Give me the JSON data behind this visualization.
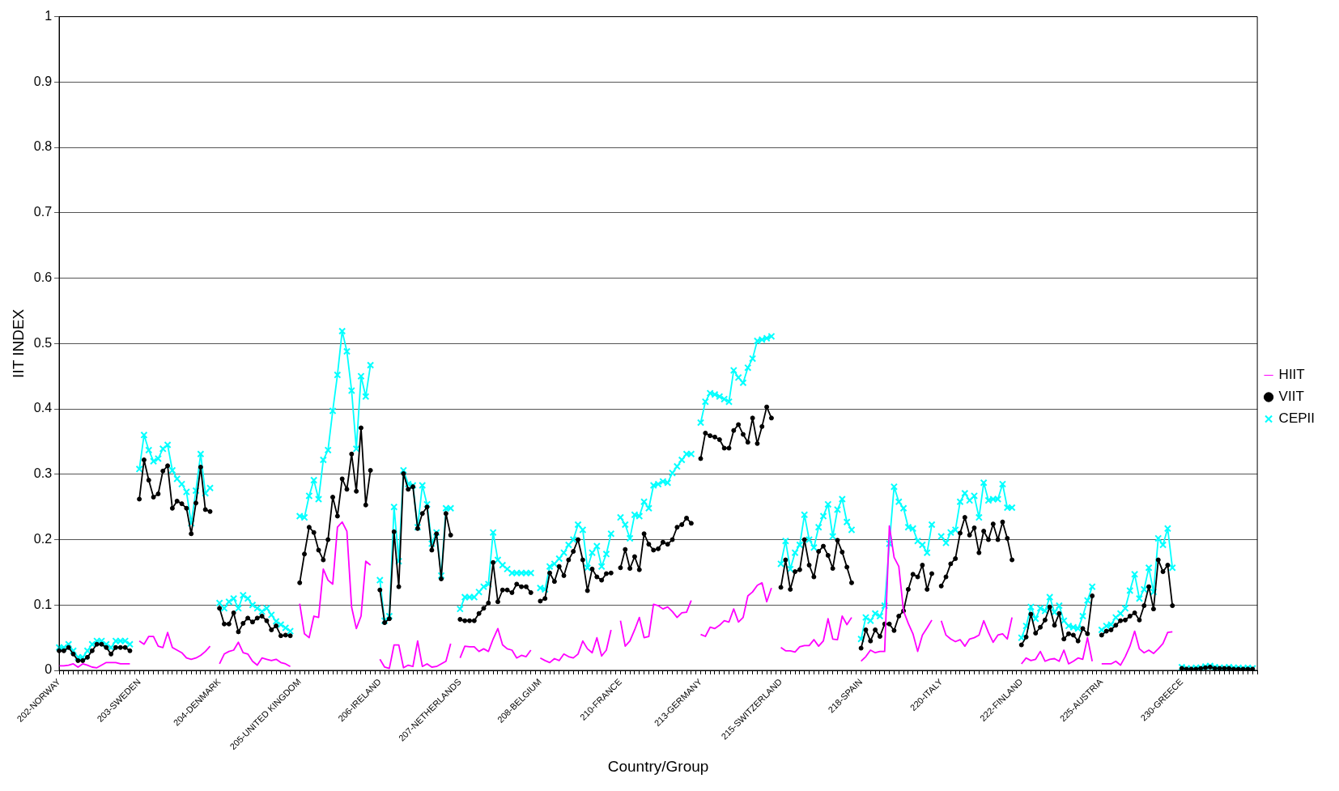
{
  "chart_data": {
    "type": "line",
    "xlabel": "Country/Group",
    "ylabel": "IIT INDEX",
    "ylim": [
      0,
      1
    ],
    "yticks": [
      0,
      0.1,
      0.2,
      0.3,
      0.4,
      0.5,
      0.6,
      0.7,
      0.8,
      0.9,
      1
    ],
    "grid": "y",
    "legend": "right",
    "categories": [
      "202-NORWAY",
      null,
      null,
      null,
      null,
      null,
      null,
      null,
      null,
      null,
      null,
      null,
      null,
      null,
      null,
      null,
      null,
      "203-SWEDEN",
      null,
      null,
      null,
      null,
      null,
      null,
      null,
      null,
      null,
      null,
      null,
      null,
      null,
      null,
      null,
      null,
      "204-DENMARK",
      null,
      null,
      null,
      null,
      null,
      null,
      null,
      null,
      null,
      null,
      null,
      null,
      null,
      null,
      null,
      null,
      "205-UNITED KINGDOM",
      null,
      null,
      null,
      null,
      null,
      null,
      null,
      null,
      null,
      null,
      null,
      null,
      null,
      null,
      null,
      null,
      "206-IRELAND",
      null,
      null,
      null,
      null,
      null,
      null,
      null,
      null,
      null,
      null,
      null,
      null,
      null,
      null,
      null,
      null,
      "207-NETHERLANDS",
      null,
      null,
      null,
      null,
      null,
      null,
      null,
      null,
      null,
      null,
      null,
      null,
      null,
      null,
      null,
      null,
      "208-BELGIUM",
      null,
      null,
      null,
      null,
      null,
      null,
      null,
      null,
      null,
      null,
      null,
      null,
      null,
      null,
      null,
      null,
      "210-FRANCE",
      null,
      null,
      null,
      null,
      null,
      null,
      null,
      null,
      null,
      null,
      null,
      null,
      null,
      null,
      null,
      null,
      "213-GERMANY",
      null,
      null,
      null,
      null,
      null,
      null,
      null,
      null,
      null,
      null,
      null,
      null,
      null,
      null,
      null,
      null,
      "215-SWITZERLAND",
      null,
      null,
      null,
      null,
      null,
      null,
      null,
      null,
      null,
      null,
      null,
      null,
      null,
      null,
      null,
      null,
      "218-SPAIN",
      null,
      null,
      null,
      null,
      null,
      null,
      null,
      null,
      null,
      null,
      null,
      null,
      null,
      null,
      null,
      null,
      "220-ITALY",
      null,
      null,
      null,
      null,
      null,
      null,
      null,
      null,
      null,
      null,
      null,
      null,
      null,
      null,
      null,
      null,
      "222-FINLAND",
      null,
      null,
      null,
      null,
      null,
      null,
      null,
      null,
      null,
      null,
      null,
      null,
      null,
      null,
      null,
      null,
      "225-AUSTRIA",
      null,
      null,
      null,
      null,
      null,
      null,
      null,
      null,
      null,
      null,
      null,
      null,
      null,
      null,
      null,
      null,
      "230-GREECE",
      null,
      null,
      null,
      null,
      null,
      null,
      null,
      null,
      null,
      null,
      null,
      null,
      null,
      null,
      null,
      null
    ],
    "series": [
      {
        "name": "HIIT",
        "color": "#ff00ff",
        "marker": "none",
        "values": [
          0.007,
          0.007,
          0.008,
          0.01,
          0.005,
          0.01,
          0.008,
          0.005,
          0.004,
          0.008,
          0.012,
          0.012,
          0.012,
          0.01,
          0.01,
          0.01,
          null,
          0.045,
          0.04,
          0.052,
          0.052,
          0.037,
          0.035,
          0.058,
          0.035,
          0.031,
          0.027,
          0.019,
          0.017,
          0.019,
          0.023,
          0.029,
          0.037,
          null,
          0.01,
          0.025,
          0.029,
          0.031,
          0.043,
          0.027,
          0.025,
          0.014,
          0.008,
          0.019,
          0.017,
          0.015,
          0.017,
          0.012,
          0.01,
          0.006,
          null,
          0.102,
          0.056,
          0.05,
          0.083,
          0.081,
          0.155,
          0.138,
          0.132,
          0.219,
          0.227,
          0.213,
          0.097,
          0.064,
          0.083,
          0.167,
          0.161,
          null,
          0.017,
          0.005,
          0.003,
          0.039,
          0.039,
          0.004,
          0.008,
          0.006,
          0.045,
          0.006,
          0.01,
          0.005,
          0.006,
          0.01,
          0.014,
          0.041,
          null,
          0.019,
          0.037,
          0.036,
          0.036,
          0.029,
          0.033,
          0.029,
          0.048,
          0.064,
          0.039,
          0.033,
          0.031,
          0.019,
          0.023,
          0.021,
          0.031,
          null,
          0.019,
          0.015,
          0.012,
          0.018,
          0.015,
          0.025,
          0.021,
          0.019,
          0.025,
          0.045,
          0.033,
          0.027,
          0.05,
          0.022,
          0.031,
          0.062,
          null,
          0.076,
          0.037,
          0.045,
          0.062,
          0.081,
          0.05,
          0.052,
          0.101,
          0.099,
          0.094,
          0.097,
          0.09,
          0.081,
          0.088,
          0.089,
          0.107,
          null,
          0.055,
          0.052,
          0.066,
          0.064,
          0.069,
          0.076,
          0.074,
          0.094,
          0.074,
          0.081,
          0.114,
          0.12,
          0.13,
          0.134,
          0.105,
          0.126,
          null,
          0.035,
          0.03,
          0.03,
          0.028,
          0.036,
          0.038,
          0.038,
          0.047,
          0.037,
          0.045,
          0.079,
          0.048,
          0.047,
          0.083,
          0.07,
          0.081,
          null,
          0.014,
          0.021,
          0.031,
          0.027,
          0.029,
          0.029,
          0.221,
          0.173,
          0.159,
          0.091,
          0.072,
          0.056,
          0.029,
          0.054,
          0.065,
          0.077,
          null,
          0.076,
          0.054,
          0.048,
          0.044,
          0.047,
          0.037,
          0.048,
          0.05,
          0.054,
          0.076,
          0.058,
          0.043,
          0.054,
          0.056,
          0.048,
          0.081,
          null,
          0.01,
          0.019,
          0.015,
          0.017,
          0.029,
          0.014,
          0.017,
          0.018,
          0.014,
          0.031,
          0.01,
          0.014,
          0.019,
          0.017,
          0.05,
          0.014,
          null,
          0.01,
          0.01,
          0.01,
          0.014,
          0.008,
          0.021,
          0.037,
          0.06,
          0.033,
          0.027,
          0.031,
          0.026,
          0.033,
          0.041,
          0.058,
          0.059,
          null,
          null,
          null,
          null,
          null,
          null,
          null,
          null,
          null,
          null,
          null,
          null,
          null,
          null,
          null,
          null,
          null,
          null
        ]
      },
      {
        "name": "VIIT",
        "color": "#000000",
        "marker": "circle",
        "values": [
          0.03,
          0.03,
          0.035,
          0.025,
          0.015,
          0.015,
          0.02,
          0.03,
          0.04,
          0.04,
          0.035,
          0.025,
          0.035,
          0.035,
          0.035,
          0.03,
          null,
          0.262,
          0.322,
          0.291,
          0.265,
          0.27,
          0.305,
          0.313,
          0.248,
          0.259,
          0.255,
          0.248,
          0.209,
          0.256,
          0.311,
          0.246,
          0.243,
          null,
          0.095,
          0.071,
          0.071,
          0.088,
          0.059,
          0.072,
          0.08,
          0.074,
          0.08,
          0.083,
          0.076,
          0.062,
          0.068,
          0.053,
          0.054,
          0.053,
          null,
          0.134,
          0.178,
          0.219,
          0.211,
          0.184,
          0.169,
          0.2,
          0.265,
          0.236,
          0.293,
          0.277,
          0.331,
          0.274,
          0.371,
          0.253,
          0.306,
          null,
          0.123,
          0.073,
          0.079,
          0.212,
          0.128,
          0.301,
          0.277,
          0.281,
          0.217,
          0.24,
          0.25,
          0.184,
          0.209,
          0.14,
          0.24,
          0.207,
          null,
          0.078,
          0.076,
          0.076,
          0.076,
          0.087,
          0.095,
          0.103,
          0.165,
          0.105,
          0.123,
          0.123,
          0.119,
          0.132,
          0.128,
          0.128,
          0.119,
          null,
          0.106,
          0.11,
          0.149,
          0.136,
          0.159,
          0.145,
          0.169,
          0.182,
          0.2,
          0.169,
          0.122,
          0.155,
          0.143,
          0.138,
          0.148,
          0.149,
          null,
          0.157,
          0.185,
          0.156,
          0.174,
          0.154,
          0.209,
          0.193,
          0.184,
          0.186,
          0.196,
          0.193,
          0.2,
          0.219,
          0.223,
          0.233,
          0.225,
          null,
          0.324,
          0.363,
          0.359,
          0.357,
          0.353,
          0.34,
          0.34,
          0.367,
          0.376,
          0.361,
          0.349,
          0.386,
          0.347,
          0.373,
          0.403,
          0.386,
          null,
          0.127,
          0.169,
          0.124,
          0.151,
          0.154,
          0.2,
          0.161,
          0.143,
          0.182,
          0.19,
          0.176,
          0.156,
          0.199,
          0.181,
          0.158,
          0.134,
          null,
          0.034,
          0.062,
          0.045,
          0.062,
          0.052,
          0.071,
          0.071,
          0.061,
          0.083,
          0.091,
          0.124,
          0.147,
          0.143,
          0.161,
          0.124,
          0.148,
          null,
          0.129,
          0.143,
          0.163,
          0.171,
          0.21,
          0.234,
          0.207,
          0.218,
          0.18,
          0.213,
          0.2,
          0.224,
          0.2,
          0.227,
          0.202,
          0.169,
          null,
          0.039,
          0.051,
          0.086,
          0.057,
          0.066,
          0.077,
          0.097,
          0.069,
          0.087,
          0.048,
          0.056,
          0.054,
          0.045,
          0.064,
          0.056,
          0.114,
          null,
          0.054,
          0.06,
          0.062,
          0.069,
          0.076,
          0.077,
          0.083,
          0.088,
          0.077,
          0.099,
          0.128,
          0.094,
          0.169,
          0.151,
          0.161,
          0.099,
          null,
          0.003,
          0.002,
          0.002,
          0.002,
          0.003,
          0.004,
          0.005,
          0.003,
          0.003,
          0.003,
          0.003,
          0.002,
          0.002,
          0.002,
          0.002,
          0.002,
          null
        ]
      },
      {
        "name": "CEPII",
        "color": "#00ffff",
        "marker": "cross",
        "values": [
          0.035,
          0.035,
          0.04,
          0.03,
          0.02,
          0.02,
          0.03,
          0.04,
          0.045,
          0.045,
          0.04,
          0.035,
          0.045,
          0.045,
          0.045,
          0.04,
          null,
          0.308,
          0.36,
          0.337,
          0.32,
          0.324,
          0.339,
          0.345,
          0.306,
          0.293,
          0.285,
          0.273,
          0.225,
          0.275,
          0.331,
          0.271,
          0.279,
          null,
          0.103,
          0.095,
          0.105,
          0.11,
          0.095,
          0.115,
          0.11,
          0.1,
          0.095,
          0.09,
          0.095,
          0.085,
          0.075,
          0.07,
          0.065,
          0.06,
          null,
          0.236,
          0.234,
          0.267,
          0.291,
          0.262,
          0.322,
          0.337,
          0.397,
          0.452,
          0.519,
          0.488,
          0.428,
          0.339,
          0.45,
          0.419,
          0.467,
          null,
          0.138,
          0.076,
          0.083,
          0.25,
          0.167,
          0.306,
          0.285,
          0.283,
          0.219,
          0.283,
          0.254,
          0.194,
          0.211,
          0.145,
          0.248,
          0.248,
          null,
          0.094,
          0.112,
          0.112,
          0.112,
          0.12,
          0.128,
          0.132,
          0.211,
          0.169,
          0.161,
          0.155,
          0.149,
          0.149,
          0.149,
          0.149,
          0.149,
          null,
          0.126,
          0.124,
          0.159,
          0.163,
          0.171,
          0.18,
          0.192,
          0.2,
          0.223,
          0.215,
          0.157,
          0.18,
          0.19,
          0.159,
          0.178,
          0.209,
          null,
          0.234,
          0.223,
          0.202,
          0.238,
          0.236,
          0.258,
          0.248,
          0.283,
          0.285,
          0.289,
          0.287,
          0.302,
          0.312,
          0.322,
          0.331,
          0.331,
          null,
          0.379,
          0.411,
          0.424,
          0.422,
          0.419,
          0.415,
          0.411,
          0.459,
          0.448,
          0.44,
          0.463,
          0.477,
          0.504,
          0.506,
          0.508,
          0.511,
          null,
          0.163,
          0.198,
          0.155,
          0.18,
          0.192,
          0.238,
          0.2,
          0.188,
          0.219,
          0.236,
          0.254,
          0.205,
          0.246,
          0.262,
          0.227,
          0.215,
          null,
          0.048,
          0.081,
          0.076,
          0.087,
          0.083,
          0.099,
          0.194,
          0.281,
          0.258,
          0.248,
          0.219,
          0.217,
          0.198,
          0.192,
          0.18,
          0.223,
          null,
          0.205,
          0.195,
          0.211,
          0.215,
          0.258,
          0.271,
          0.26,
          0.267,
          0.234,
          0.287,
          0.26,
          0.262,
          0.262,
          0.285,
          0.249,
          0.249,
          null,
          0.05,
          0.068,
          0.097,
          0.079,
          0.095,
          0.091,
          0.112,
          0.089,
          0.099,
          0.076,
          0.068,
          0.066,
          0.064,
          0.083,
          0.107,
          0.128,
          null,
          0.062,
          0.068,
          0.07,
          0.081,
          0.087,
          0.095,
          0.122,
          0.147,
          0.11,
          0.124,
          0.157,
          0.12,
          0.202,
          0.192,
          0.217,
          0.157,
          null,
          0.005,
          0.003,
          0.003,
          0.004,
          0.004,
          0.006,
          0.007,
          0.005,
          0.004,
          0.004,
          0.005,
          0.004,
          0.004,
          0.003,
          0.004,
          0.003,
          null
        ]
      }
    ]
  }
}
